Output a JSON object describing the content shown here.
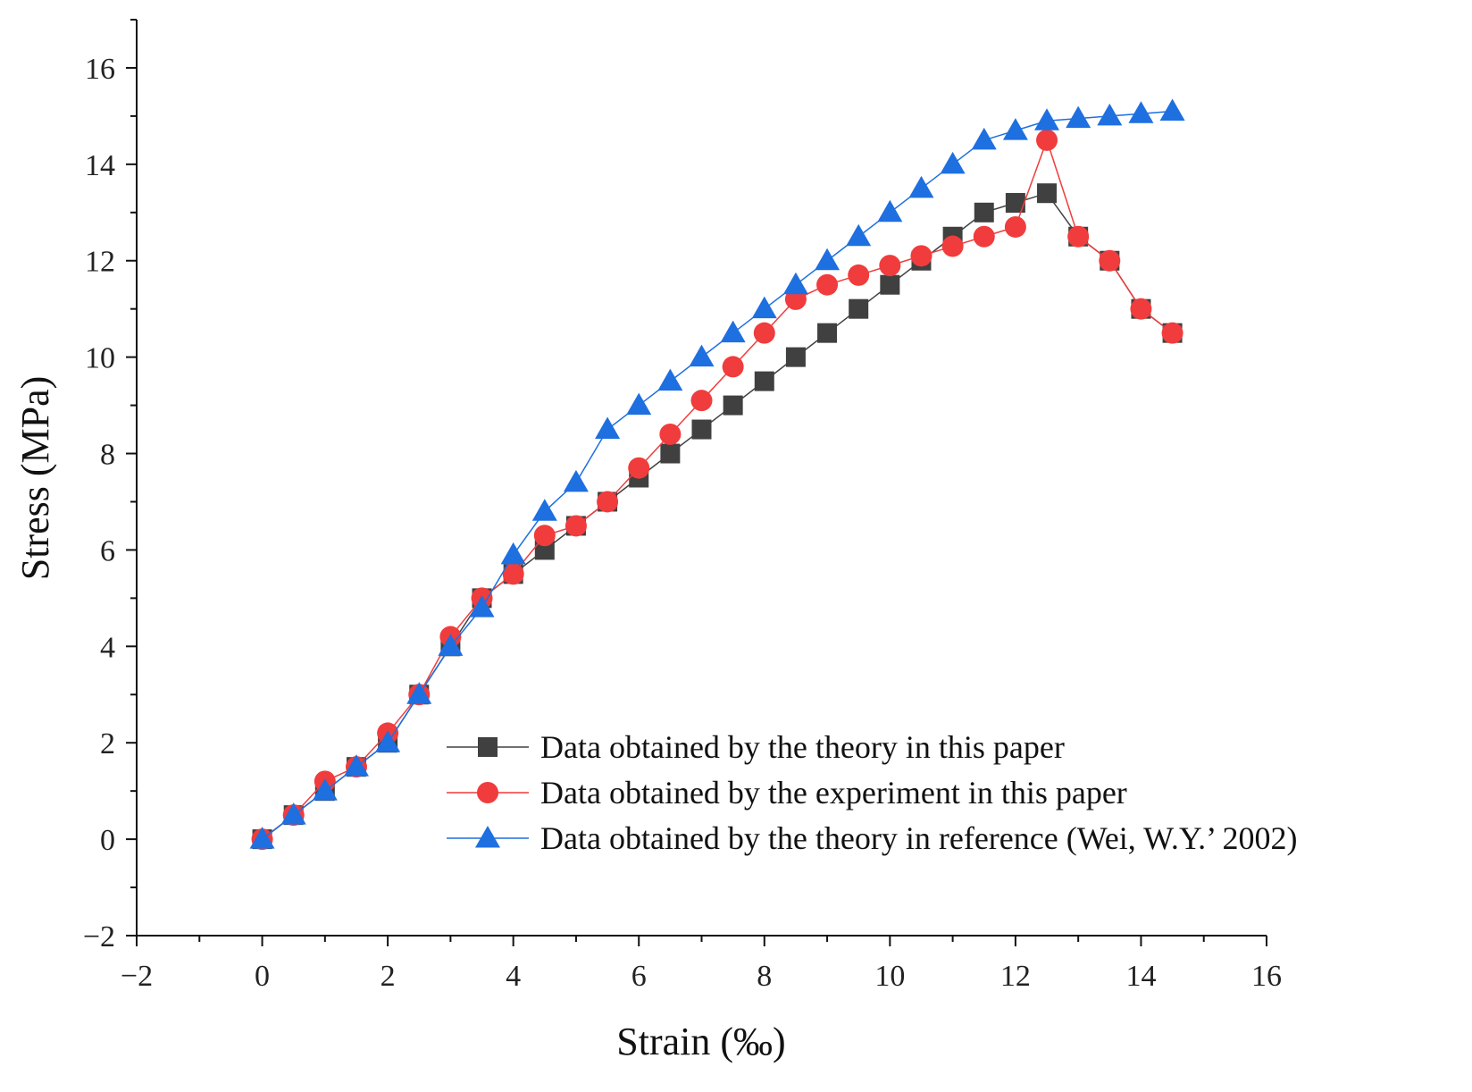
{
  "chart_data": {
    "type": "line",
    "title": "",
    "xlabel": "Strain (‰)",
    "ylabel": "Stress (MPa)",
    "xlim": [
      -2,
      16
    ],
    "ylim": [
      -2,
      17
    ],
    "x_ticks": [
      -2,
      0,
      2,
      4,
      6,
      8,
      10,
      12,
      14,
      16
    ],
    "x_tick_labels": [
      "−2",
      "0",
      "2",
      "4",
      "6",
      "8",
      "10",
      "12",
      "14",
      "16"
    ],
    "y_ticks": [
      -2,
      0,
      2,
      4,
      6,
      8,
      10,
      12,
      14,
      16
    ],
    "y_tick_labels": [
      "−2",
      "0",
      "2",
      "4",
      "6",
      "8",
      "10",
      "12",
      "14",
      "16"
    ],
    "grid": false,
    "legend_position": "center-right",
    "series": [
      {
        "name": "Data obtained by the theory in this paper",
        "marker": "square",
        "color": "#404040",
        "x": [
          0,
          0.5,
          1,
          1.5,
          2,
          2.5,
          3,
          3.5,
          4,
          4.5,
          5,
          5.5,
          6,
          6.5,
          7,
          7.5,
          8,
          8.5,
          9,
          9.5,
          10,
          10.5,
          11,
          11.5,
          12,
          12.5,
          13,
          13.5,
          14,
          14.5
        ],
        "y": [
          0,
          0.5,
          1.0,
          1.5,
          2.0,
          3.0,
          4.0,
          5.0,
          5.5,
          6.0,
          6.5,
          7.0,
          7.5,
          8.0,
          8.5,
          9.0,
          9.5,
          10.0,
          10.5,
          11.0,
          11.5,
          12.0,
          12.5,
          13.0,
          13.2,
          13.4,
          12.5,
          12.0,
          11.0,
          10.5
        ]
      },
      {
        "name": "Data obtained by the experiment in this paper",
        "marker": "circle",
        "color": "#f03c3c",
        "x": [
          0,
          0.5,
          1,
          1.5,
          2,
          2.5,
          3,
          3.5,
          4,
          4.5,
          5,
          5.5,
          6,
          6.5,
          7,
          7.5,
          8,
          8.5,
          9,
          9.5,
          10,
          10.5,
          11,
          11.5,
          12,
          12.5,
          13,
          13.5,
          14,
          14.5
        ],
        "y": [
          0,
          0.5,
          1.2,
          1.5,
          2.2,
          3.0,
          4.2,
          5.0,
          5.5,
          6.3,
          6.5,
          7.0,
          7.7,
          8.4,
          9.1,
          9.8,
          10.5,
          11.2,
          11.5,
          11.7,
          11.9,
          12.1,
          12.3,
          12.5,
          12.7,
          14.5,
          12.5,
          12.0,
          11.0,
          10.5
        ]
      },
      {
        "name": "Data obtained by the theory in reference (Wei, W.Y.’ 2002)",
        "marker": "triangle",
        "color": "#1e6fe0",
        "x": [
          0,
          0.5,
          1,
          1.5,
          2,
          2.5,
          3,
          3.5,
          4,
          4.5,
          5,
          5.5,
          6,
          6.5,
          7,
          7.5,
          8,
          8.5,
          9,
          9.5,
          10,
          10.5,
          11,
          11.5,
          12,
          12.5,
          13,
          13.5,
          14,
          14.5
        ],
        "y": [
          0,
          0.5,
          1.0,
          1.5,
          2.0,
          3.0,
          4.0,
          4.8,
          5.9,
          6.8,
          7.4,
          8.5,
          9.0,
          9.5,
          10.0,
          10.5,
          11.0,
          11.5,
          12.0,
          12.5,
          13.0,
          13.5,
          14.0,
          14.5,
          14.7,
          14.9,
          14.95,
          15.0,
          15.05,
          15.1
        ]
      }
    ]
  }
}
